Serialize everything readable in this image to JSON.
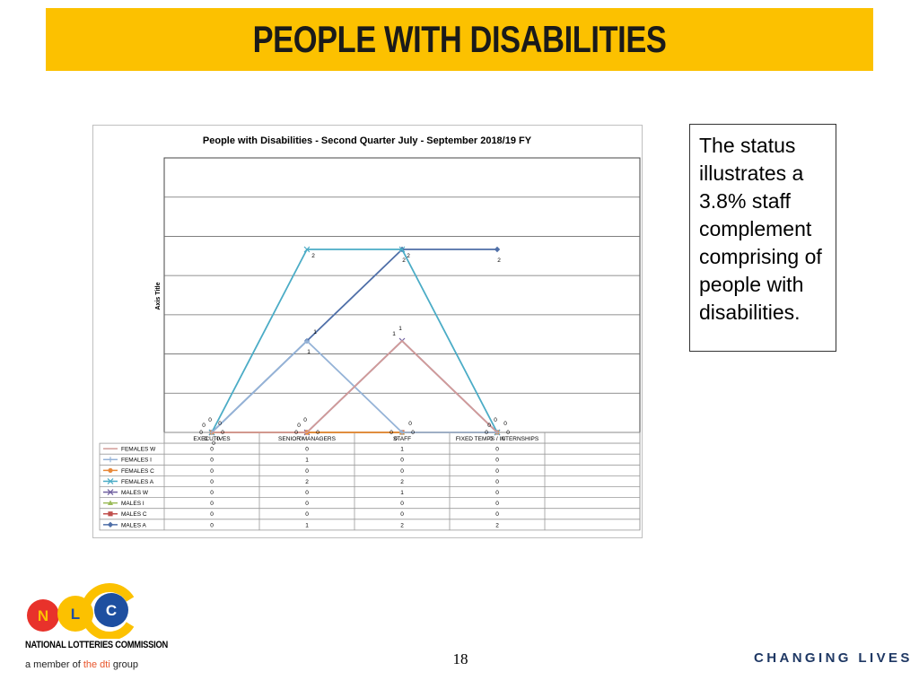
{
  "slide": {
    "title": "PEOPLE WITH DISABILITIES",
    "note": "The status illustrates a 3.8% staff complement comprising of people with disabilities.",
    "page_number": "18",
    "tagline": "CHANGING LIVES"
  },
  "logo": {
    "letters": [
      "N",
      "L",
      "C"
    ],
    "name": "NATIONAL LOTTERIES COMMISSION",
    "member_prefix": "a member of",
    "member_org": "the dti",
    "member_suffix": "group",
    "colors": {
      "n_circle": "#e8322b",
      "l_circle": "#fcc100",
      "c_circle": "#1e4fa0",
      "c_arc": "#fcc100"
    }
  },
  "colors": {
    "title_bar": "#fcc100",
    "title_text": "#1a1a1a",
    "tagline": "#1f3864"
  },
  "chart_data": {
    "type": "line",
    "title": "People with Disabilities - Second Quarter July - September 2018/19 FY",
    "ylabel": "Axis Title",
    "xlabel": "",
    "categories": [
      "EXECUTIVES",
      "SENIOR MANAGERS",
      "STAFF",
      "FIXED TEMPS / INTERNSHIPS"
    ],
    "ylim": [
      0,
      3
    ],
    "grid": true,
    "legend": "data-table",
    "series": [
      {
        "name": "FEMALES W",
        "values": [
          0,
          0,
          1,
          0
        ],
        "color": "#d29b98",
        "marker": "none"
      },
      {
        "name": "FEMALES I",
        "values": [
          0,
          1,
          0,
          0
        ],
        "color": "#95b3d7",
        "marker": "plus"
      },
      {
        "name": "FEMALES C",
        "values": [
          0,
          0,
          0,
          0
        ],
        "color": "#e8893a",
        "marker": "circle"
      },
      {
        "name": "FEMALES A",
        "values": [
          0,
          2,
          2,
          0
        ],
        "color": "#4bacc6",
        "marker": "x"
      },
      {
        "name": "MALES W",
        "values": [
          0,
          0,
          1,
          0
        ],
        "color": "#7060a0",
        "marker": "x"
      },
      {
        "name": "MALES I",
        "values": [
          0,
          0,
          0,
          0
        ],
        "color": "#9bbb59",
        "marker": "triangle"
      },
      {
        "name": "MALES C",
        "values": [
          0,
          0,
          0,
          0
        ],
        "color": "#c0504d",
        "marker": "square"
      },
      {
        "name": "MALES A",
        "values": [
          0,
          1,
          2,
          2
        ],
        "color": "#4f6fa8",
        "marker": "diamond"
      }
    ]
  }
}
